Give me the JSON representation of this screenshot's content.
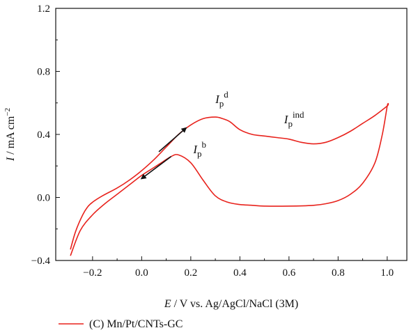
{
  "chart_data": {
    "type": "line",
    "xlabel_italic": "E",
    "xlabel_rest": " / V vs. Ag/AgCl/NaCl (3M)",
    "ylabel_italic": "I",
    "ylabel_rest": " / mA cm",
    "ylabel_sup": "−2",
    "xlim": [
      -0.35,
      1.08
    ],
    "ylim": [
      -0.4,
      1.2
    ],
    "x_ticks": [
      -0.2,
      0.0,
      0.2,
      0.4,
      0.6,
      0.8,
      1.0
    ],
    "x_tick_labels": [
      "−0.2",
      "0.0",
      "0.2",
      "0.4",
      "0.6",
      "0.8",
      "1.0"
    ],
    "y_ticks": [
      -0.4,
      0.0,
      0.4,
      0.8,
      1.2
    ],
    "y_tick_labels": [
      "−0.4",
      "0.0",
      "0.4",
      "0.8",
      "1.2"
    ],
    "grid": false,
    "legend_position": "bottom-left",
    "series": [
      {
        "name": "(C) Mn/Pt/CNTs-GC",
        "color": "#e8221c",
        "x": [
          -0.29,
          -0.27,
          -0.24,
          -0.22,
          -0.2,
          -0.16,
          -0.1,
          -0.05,
          0.0,
          0.05,
          0.1,
          0.15,
          0.2,
          0.25,
          0.3,
          0.33,
          0.36,
          0.4,
          0.45,
          0.5,
          0.55,
          0.6,
          0.65,
          0.7,
          0.75,
          0.8,
          0.85,
          0.9,
          0.95,
          1.0,
          1.0,
          0.98,
          0.95,
          0.9,
          0.85,
          0.8,
          0.75,
          0.7,
          0.6,
          0.5,
          0.45,
          0.4,
          0.35,
          0.3,
          0.25,
          0.2,
          0.15,
          0.12,
          0.08,
          0.05,
          0.0,
          -0.05,
          -0.1,
          -0.15,
          -0.2,
          -0.25,
          -0.29
        ],
        "y": [
          -0.33,
          -0.22,
          -0.11,
          -0.06,
          -0.03,
          0.01,
          0.06,
          0.11,
          0.17,
          0.24,
          0.32,
          0.4,
          0.46,
          0.5,
          0.51,
          0.5,
          0.48,
          0.43,
          0.4,
          0.39,
          0.38,
          0.37,
          0.35,
          0.34,
          0.35,
          0.38,
          0.42,
          0.47,
          0.52,
          0.58,
          0.58,
          0.4,
          0.22,
          0.09,
          0.02,
          -0.02,
          -0.04,
          -0.05,
          -0.055,
          -0.055,
          -0.05,
          -0.045,
          -0.03,
          0.01,
          0.11,
          0.22,
          0.27,
          0.26,
          0.22,
          0.19,
          0.14,
          0.08,
          0.02,
          -0.04,
          -0.11,
          -0.21,
          -0.37
        ]
      }
    ],
    "annotations": [
      {
        "base": "I",
        "sub": "p",
        "sup": "d",
        "x": 0.3,
        "y": 0.6
      },
      {
        "base": "I",
        "sub": "p",
        "sup": "ind",
        "x": 0.58,
        "y": 0.47
      },
      {
        "base": "I",
        "sub": "p",
        "sup": "b",
        "x": 0.21,
        "y": 0.28
      }
    ],
    "arrows": [
      {
        "from": [
          0.07,
          0.29
        ],
        "to": [
          0.18,
          0.44
        ]
      },
      {
        "from": [
          0.12,
          0.26
        ],
        "to": [
          0.0,
          0.12
        ]
      }
    ]
  }
}
